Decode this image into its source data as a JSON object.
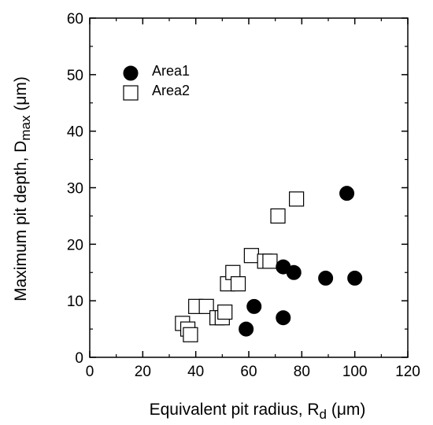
{
  "chart_data": {
    "type": "scatter",
    "xlabel": {
      "main": "Equivalent pit radius, R",
      "sub": "d",
      "unit": " (μm)"
    },
    "ylabel": {
      "main": "Maximum pit depth, D",
      "sub": "max",
      "unit": " (μm)"
    },
    "xlim": [
      0,
      120
    ],
    "ylim": [
      0,
      60
    ],
    "xticks": [
      0,
      20,
      40,
      60,
      80,
      100,
      120
    ],
    "yticks": [
      0,
      10,
      20,
      30,
      40,
      50,
      60
    ],
    "grid": false,
    "legend_position": "top-left",
    "series": [
      {
        "name": "Area1",
        "marker": "filled-circle",
        "color": "#000000",
        "points": [
          [
            59,
            5
          ],
          [
            62,
            9
          ],
          [
            73,
            7
          ],
          [
            73,
            16
          ],
          [
            77,
            15
          ],
          [
            89,
            14
          ],
          [
            97,
            29
          ],
          [
            100,
            14
          ]
        ]
      },
      {
        "name": "Area2",
        "marker": "open-square",
        "color": "#000000",
        "points": [
          [
            35,
            6
          ],
          [
            37,
            5
          ],
          [
            38,
            4
          ],
          [
            40,
            9
          ],
          [
            44,
            9
          ],
          [
            48,
            7
          ],
          [
            50,
            7
          ],
          [
            51,
            8
          ],
          [
            52,
            13
          ],
          [
            54,
            15
          ],
          [
            56,
            13
          ],
          [
            61,
            18
          ],
          [
            66,
            17
          ],
          [
            68,
            17
          ],
          [
            71,
            25
          ],
          [
            78,
            28
          ]
        ]
      }
    ]
  }
}
